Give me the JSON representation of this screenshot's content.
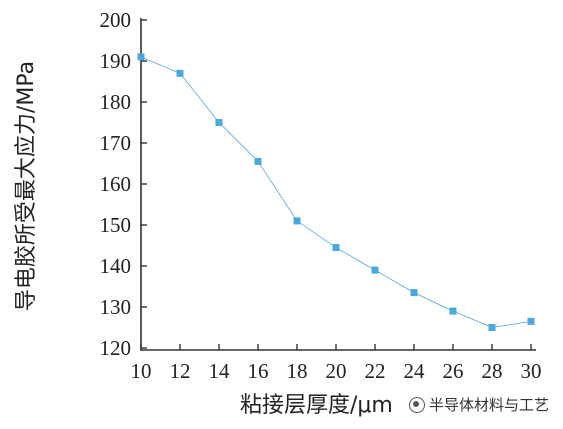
{
  "chart_data": {
    "type": "line",
    "x": [
      10,
      12,
      14,
      16,
      18,
      20,
      22,
      24,
      26,
      28,
      30
    ],
    "series": [
      {
        "values": [
          191,
          187,
          175,
          165.5,
          151,
          144.5,
          139,
          133.5,
          129,
          125,
          126.5
        ],
        "color": "#4aa8e0"
      }
    ],
    "xlabel": "粘接层厚度/μm",
    "ylabel": "导电胶所受最大应力/MPa",
    "xlim": [
      10,
      30
    ],
    "ylim": [
      120,
      200
    ],
    "xticks": [
      10,
      12,
      14,
      16,
      18,
      20,
      22,
      24,
      26,
      28,
      30
    ],
    "yticks": [
      120,
      130,
      140,
      150,
      160,
      170,
      180,
      190,
      200
    ],
    "grid": false,
    "marker": "square"
  },
  "watermark": {
    "text": "半导体材料与工艺",
    "icon": "wechat-icon"
  }
}
